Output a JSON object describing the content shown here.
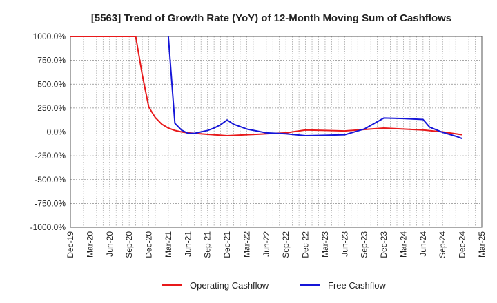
{
  "chart_data": {
    "type": "line",
    "title": "[5563]  Trend of Growth Rate (YoY) of 12-Month Moving Sum of Cashflows",
    "ylim": [
      -1000,
      1000
    ],
    "y_ticks": [
      1000,
      750,
      500,
      250,
      0,
      -250,
      -500,
      -750,
      -1000
    ],
    "y_tick_labels": [
      "1000.0%",
      "750.0%",
      "500.0%",
      "250.0%",
      "0.0%",
      "-250.0%",
      "-500.0%",
      "-750.0%",
      "-1000.0%"
    ],
    "x_start": "2019-12",
    "x_end": "2025-03",
    "x_tick_labels": [
      "Dec-19",
      "Mar-20",
      "Jun-20",
      "Sep-20",
      "Dec-20",
      "Mar-21",
      "Jun-21",
      "Sep-21",
      "Dec-21",
      "Mar-22",
      "Jun-22",
      "Sep-22",
      "Dec-22",
      "Mar-23",
      "Jun-23",
      "Sep-23",
      "Dec-23",
      "Mar-24",
      "Jun-24",
      "Sep-24",
      "Dec-24",
      "Mar-25"
    ],
    "grid": true,
    "legend_position": "bottom",
    "series": [
      {
        "name": "Operating Cashflow",
        "color": "#e8191b",
        "points": [
          [
            "2019-12",
            1000
          ],
          [
            "2020-10",
            1000
          ],
          [
            "2020-11",
            600
          ],
          [
            "2020-12",
            260
          ],
          [
            "2021-01",
            150
          ],
          [
            "2021-02",
            80
          ],
          [
            "2021-03",
            40
          ],
          [
            "2021-04",
            15
          ],
          [
            "2021-05",
            0
          ],
          [
            "2021-06",
            -10
          ],
          [
            "2021-09",
            -25
          ],
          [
            "2021-12",
            -40
          ],
          [
            "2022-03",
            -30
          ],
          [
            "2022-06",
            -20
          ],
          [
            "2022-09",
            -10
          ],
          [
            "2022-12",
            20
          ],
          [
            "2023-03",
            15
          ],
          [
            "2023-06",
            10
          ],
          [
            "2023-09",
            25
          ],
          [
            "2023-12",
            40
          ],
          [
            "2024-03",
            30
          ],
          [
            "2024-06",
            20
          ],
          [
            "2024-09",
            0
          ],
          [
            "2024-12",
            -30
          ]
        ]
      },
      {
        "name": "Free Cashflow",
        "color": "#1515d8",
        "points": [
          [
            "2021-03",
            1000
          ],
          [
            "2021-04",
            90
          ],
          [
            "2021-05",
            20
          ],
          [
            "2021-06",
            -15
          ],
          [
            "2021-07",
            -15
          ],
          [
            "2021-08",
            0
          ],
          [
            "2021-09",
            15
          ],
          [
            "2021-10",
            40
          ],
          [
            "2021-11",
            75
          ],
          [
            "2021-12",
            125
          ],
          [
            "2022-01",
            80
          ],
          [
            "2022-03",
            30
          ],
          [
            "2022-06",
            -10
          ],
          [
            "2022-09",
            -20
          ],
          [
            "2022-12",
            -40
          ],
          [
            "2023-03",
            -35
          ],
          [
            "2023-06",
            -30
          ],
          [
            "2023-09",
            30
          ],
          [
            "2023-12",
            145
          ],
          [
            "2024-03",
            140
          ],
          [
            "2024-06",
            130
          ],
          [
            "2024-07",
            50
          ],
          [
            "2024-09",
            -5
          ],
          [
            "2024-11",
            -45
          ],
          [
            "2024-12",
            -70
          ]
        ]
      }
    ]
  }
}
